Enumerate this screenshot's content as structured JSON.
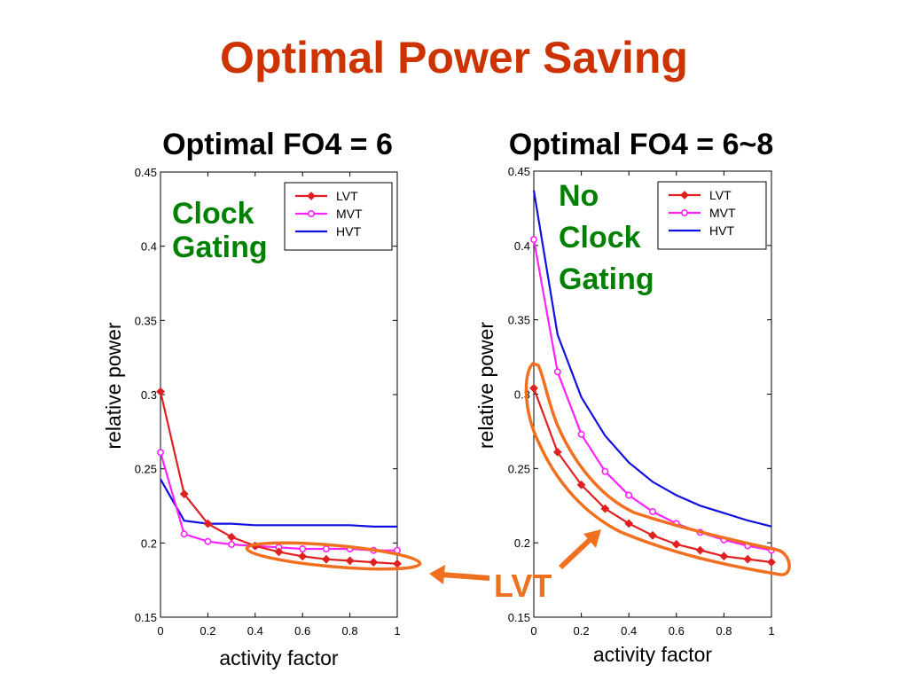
{
  "slide": {
    "title": "Optimal Power Saving",
    "title_color": "#cc3300",
    "annotation_color": "#008000",
    "highlight_color": "#f07020",
    "lvt_callout": "LVT"
  },
  "chart_data": [
    {
      "type": "line",
      "title": "Optimal FO4 = 6",
      "xlabel": "activity factor",
      "ylabel": "relative power",
      "xlim": [
        0,
        1
      ],
      "ylim": [
        0.15,
        0.45
      ],
      "x_ticks": [
        "0",
        "0.2",
        "0.4",
        "0.6",
        "0.8",
        "1"
      ],
      "y_ticks": [
        "0.15",
        "0.2",
        "0.25",
        "0.3",
        "0.35",
        "0.4",
        "0.45"
      ],
      "grid": false,
      "legend": "top-right",
      "annotation": [
        "Clock",
        "Gating"
      ],
      "x": [
        0,
        0.1,
        0.2,
        0.3,
        0.4,
        0.5,
        0.6,
        0.7,
        0.8,
        0.9,
        1.0
      ],
      "series": [
        {
          "name": "LVT",
          "color": "#e02020",
          "marker": "diamond",
          "values": [
            0.302,
            0.233,
            0.213,
            0.204,
            0.198,
            0.194,
            0.191,
            0.189,
            0.188,
            0.187,
            0.186
          ]
        },
        {
          "name": "MVT",
          "color": "#ff22ff",
          "marker": "circle",
          "values": [
            0.261,
            0.206,
            0.201,
            0.199,
            0.198,
            0.197,
            0.196,
            0.196,
            0.196,
            0.195,
            0.195
          ]
        },
        {
          "name": "HVT",
          "color": "#1010e0",
          "marker": "none",
          "values": [
            0.243,
            0.215,
            0.213,
            0.213,
            0.212,
            0.212,
            0.212,
            0.212,
            0.212,
            0.211,
            0.211
          ]
        }
      ]
    },
    {
      "type": "line",
      "title": "Optimal FO4 = 6~8",
      "xlabel": "activity factor",
      "ylabel": "relative power",
      "xlim": [
        0,
        1
      ],
      "ylim": [
        0.15,
        0.45
      ],
      "x_ticks": [
        "0",
        "0.2",
        "0.4",
        "0.6",
        "0.8",
        "1"
      ],
      "y_ticks": [
        "0.15",
        "0.2",
        "0.25",
        "0.3",
        "0.35",
        "0.4",
        "0.45"
      ],
      "grid": false,
      "legend": "top-right",
      "annotation": [
        "No",
        "Clock",
        "Gating"
      ],
      "x": [
        0,
        0.1,
        0.2,
        0.3,
        0.4,
        0.5,
        0.6,
        0.7,
        0.8,
        0.9,
        1.0
      ],
      "series": [
        {
          "name": "LVT",
          "color": "#e02020",
          "marker": "diamond",
          "values": [
            0.304,
            0.261,
            0.239,
            0.223,
            0.213,
            0.205,
            0.199,
            0.195,
            0.191,
            0.189,
            0.187
          ]
        },
        {
          "name": "MVT",
          "color": "#ff22ff",
          "marker": "circle",
          "values": [
            0.404,
            0.315,
            0.273,
            0.248,
            0.232,
            0.221,
            0.213,
            0.207,
            0.202,
            0.198,
            0.195
          ]
        },
        {
          "name": "HVT",
          "color": "#1010e0",
          "marker": "none",
          "values": [
            0.437,
            0.34,
            0.298,
            0.272,
            0.254,
            0.241,
            0.232,
            0.225,
            0.22,
            0.215,
            0.211
          ]
        }
      ]
    }
  ]
}
